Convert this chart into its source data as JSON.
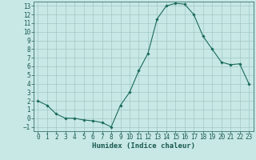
{
  "x": [
    0,
    1,
    2,
    3,
    4,
    5,
    6,
    7,
    8,
    9,
    10,
    11,
    12,
    13,
    14,
    15,
    16,
    17,
    18,
    19,
    20,
    21,
    22,
    23
  ],
  "y": [
    2,
    1.5,
    0.5,
    0,
    0,
    -0.2,
    -0.3,
    -0.5,
    -1,
    1.5,
    3,
    5.5,
    7.5,
    11.5,
    13,
    13.3,
    13.2,
    12,
    9.5,
    8,
    6.5,
    6.2,
    6.3,
    4
  ],
  "line_color": "#1a6b5a",
  "marker": "D",
  "marker_size": 1.8,
  "bg_color": "#c8e8e5",
  "grid_color": "#a0c8c4",
  "xlabel": "Humidex (Indice chaleur)",
  "xlabel_color": "#1a5a50",
  "xlabel_fontsize": 6.5,
  "tick_color": "#1a5a50",
  "tick_fontsize": 5.5,
  "ylim": [
    -1.5,
    13.5
  ],
  "xlim": [
    -0.5,
    23.5
  ],
  "yticks": [
    -1,
    0,
    1,
    2,
    3,
    4,
    5,
    6,
    7,
    8,
    9,
    10,
    11,
    12,
    13
  ],
  "xticks": [
    0,
    1,
    2,
    3,
    4,
    5,
    6,
    7,
    8,
    9,
    10,
    11,
    12,
    13,
    14,
    15,
    16,
    17,
    18,
    19,
    20,
    21,
    22,
    23
  ]
}
